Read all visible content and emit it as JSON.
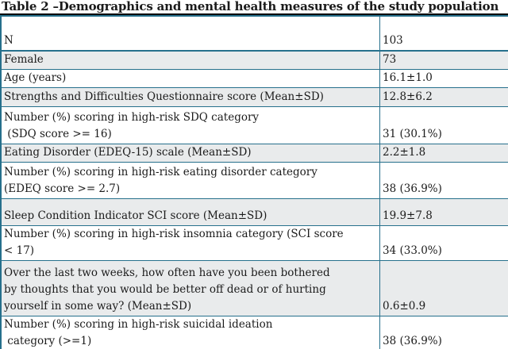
{
  "title": "Table 2 –Demographics and mental health measures of the study population",
  "colors": {
    "table_border": "#26708C",
    "shaded_row_background": "#E9EBEC",
    "title_underline": "#000000",
    "text": "#1b1b1b"
  },
  "table": {
    "columns": [
      "measure",
      "value"
    ],
    "rows": [
      {
        "label": "N",
        "value": "103",
        "shaded": false
      },
      {
        "label": "Female",
        "value": "73",
        "shaded": true
      },
      {
        "label": "Age (years)",
        "value": "16.1±1.0",
        "shaded": false
      },
      {
        "label": "Strengths and Difficulties Questionnaire score (Mean±SD)",
        "value": "12.8±6.2",
        "shaded": true
      },
      {
        "label": "Number (%) scoring in high-risk SDQ category\n (SDQ score >= 16)",
        "value": "31 (30.1%)",
        "shaded": false
      },
      {
        "label": "Eating Disorder (EDEQ-15) scale (Mean±SD)",
        "value": "2.2±1.8",
        "shaded": true
      },
      {
        "label": "Number (%) scoring in high-risk eating disorder category\n(EDEQ score >= 2.7)",
        "value": "38 (36.9%)",
        "shaded": false
      },
      {
        "label": "Sleep Condition Indicator SCI score (Mean±SD)",
        "value": "19.9±7.8",
        "shaded": true
      },
      {
        "label": "Number (%) scoring in high-risk insomnia category (SCI score\n< 17)",
        "value": "34 (33.0%)",
        "shaded": false
      },
      {
        "label": "Over the last two weeks, how often have you been bothered\nby thoughts that you would be better off dead or of hurting\nyourself in some way? (Mean±SD)",
        "value": "0.6±0.9",
        "shaded": true
      },
      {
        "label": "Number (%) scoring in high-risk suicidal ideation\n category (>=1)",
        "value": "38 (36.9%)",
        "shaded": false
      }
    ]
  }
}
